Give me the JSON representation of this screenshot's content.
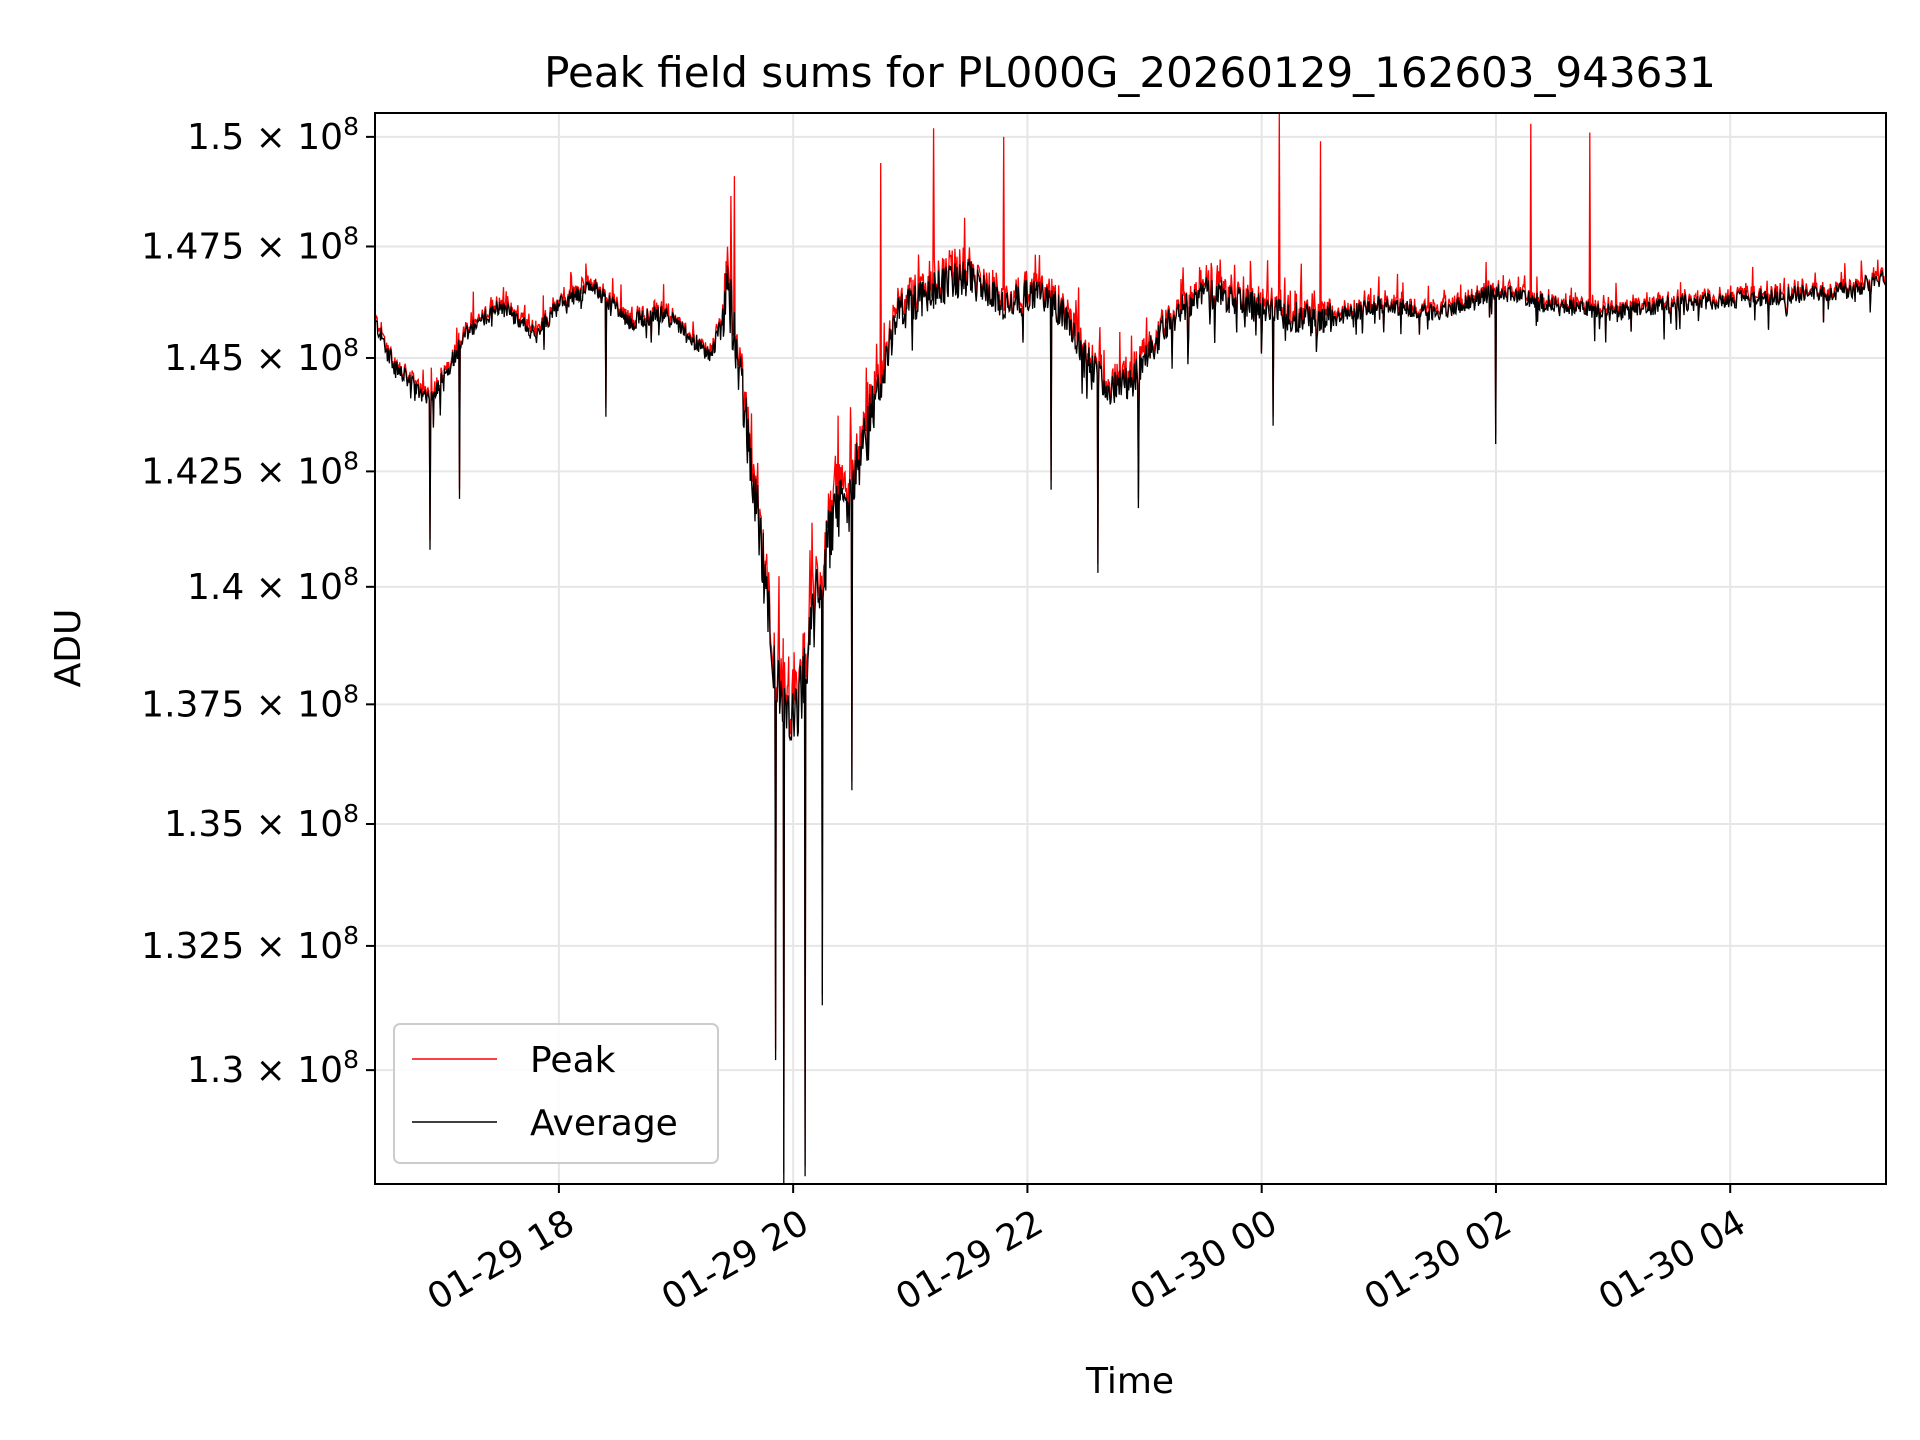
{
  "chart_data": {
    "type": "line",
    "title": "Peak field sums for PL000G_20260129_162603_943631",
    "xlabel": "Time",
    "ylabel": "ADU",
    "ylim": [
      127750000.0,
      150550000.0
    ],
    "xlim_hours": [
      16.43,
      29.33
    ],
    "y_scale": "log",
    "grid": true,
    "legend_position": "lower-left",
    "x_ticks": [
      {
        "label": "01-29 18",
        "hour": 18
      },
      {
        "label": "01-29 20",
        "hour": 20
      },
      {
        "label": "01-29 22",
        "hour": 22
      },
      {
        "label": "01-30 00",
        "hour": 24
      },
      {
        "label": "01-30 02",
        "hour": 26
      },
      {
        "label": "01-30 04",
        "hour": 28
      }
    ],
    "y_ticks": [
      {
        "mantissa": "1.3",
        "exponent": "8",
        "value": 130000000.0
      },
      {
        "mantissa": "1.325",
        "exponent": "8",
        "value": 132500000.0
      },
      {
        "mantissa": "1.35",
        "exponent": "8",
        "value": 135000000.0
      },
      {
        "mantissa": "1.375",
        "exponent": "8",
        "value": 137500000.0
      },
      {
        "mantissa": "1.4",
        "exponent": "8",
        "value": 140000000.0
      },
      {
        "mantissa": "1.425",
        "exponent": "8",
        "value": 142500000.0
      },
      {
        "mantissa": "1.45",
        "exponent": "8",
        "value": 145000000.0
      },
      {
        "mantissa": "1.475",
        "exponent": "8",
        "value": 147500000.0
      },
      {
        "mantissa": "1.5",
        "exponent": "8",
        "value": 150000000.0
      }
    ],
    "series": [
      {
        "name": "Peak",
        "color": "#ff0000"
      },
      {
        "name": "Average",
        "color": "#000000"
      }
    ],
    "anchors_hours": [
      16.43,
      16.6,
      16.9,
      17.2,
      17.5,
      17.8,
      18.0,
      18.3,
      18.6,
      18.9,
      19.1,
      19.3,
      19.45,
      19.55,
      19.65,
      19.75,
      19.85,
      19.95,
      20.05,
      20.15,
      20.3,
      20.45,
      20.6,
      20.75,
      20.9,
      21.2,
      21.5,
      21.8,
      22.1,
      22.3,
      22.5,
      22.7,
      22.9,
      23.2,
      23.5,
      23.8,
      24.1,
      24.5,
      25.0,
      25.5,
      26.0,
      26.5,
      27.0,
      27.5,
      28.0,
      28.5,
      29.0,
      29.33
    ],
    "anchors_average": [
      145800000.0,
      144800000.0,
      144000000.0,
      145500000.0,
      146200000.0,
      145500000.0,
      146200000.0,
      146600000.0,
      145800000.0,
      146000000.0,
      145500000.0,
      145000000.0,
      146500000.0,
      144500000.0,
      142500000.0,
      140500000.0,
      138000000.0,
      137000000.0,
      137500000.0,
      139000000.0,
      141000000.0,
      142000000.0,
      143000000.0,
      144500000.0,
      146000000.0,
      146500000.0,
      146800000.0,
      146200000.0,
      146500000.0,
      146000000.0,
      145000000.0,
      144300000.0,
      144500000.0,
      145800000.0,
      146500000.0,
      146300000.0,
      146000000.0,
      145800000.0,
      146200000.0,
      146000000.0,
      146500000.0,
      146200000.0,
      146000000.0,
      146200000.0,
      146300000.0,
      146400000.0,
      146500000.0,
      146800000.0
    ],
    "noise_amplitude": 200000.0,
    "dips": [
      {
        "hour": 16.9,
        "average": 140800000.0
      },
      {
        "hour": 17.15,
        "average": 141900000.0
      },
      {
        "hour": 18.4,
        "average": 143700000.0
      },
      {
        "hour": 19.85,
        "average": 130200000.0
      },
      {
        "hour": 19.92,
        "average": 127750000.0
      },
      {
        "hour": 20.1,
        "average": 127900000.0
      },
      {
        "hour": 20.25,
        "average": 131300000.0
      },
      {
        "hour": 20.5,
        "average": 135700000.0
      },
      {
        "hour": 22.2,
        "average": 142100000.0
      },
      {
        "hour": 22.6,
        "average": 140300000.0
      },
      {
        "hour": 22.95,
        "average": 141700000.0
      },
      {
        "hour": 26.0,
        "average": 143100000.0
      },
      {
        "hour": 24.1,
        "average": 143500000.0
      }
    ],
    "spikes": [
      {
        "hour": 24.15,
        "peak": 150550000.0
      },
      {
        "hour": 26.8,
        "peak": 150100000.0
      },
      {
        "hour": 26.3,
        "peak": 150300000.0
      },
      {
        "hour": 24.5,
        "peak": 149900000.0
      },
      {
        "hour": 21.8,
        "peak": 150000000.0
      },
      {
        "hour": 21.2,
        "peak": 150200000.0
      },
      {
        "hour": 20.75,
        "peak": 149400000.0
      },
      {
        "hour": 19.5,
        "peak": 149100000.0
      }
    ]
  },
  "legend": {
    "peak_label": "Peak",
    "average_label": "Average"
  }
}
